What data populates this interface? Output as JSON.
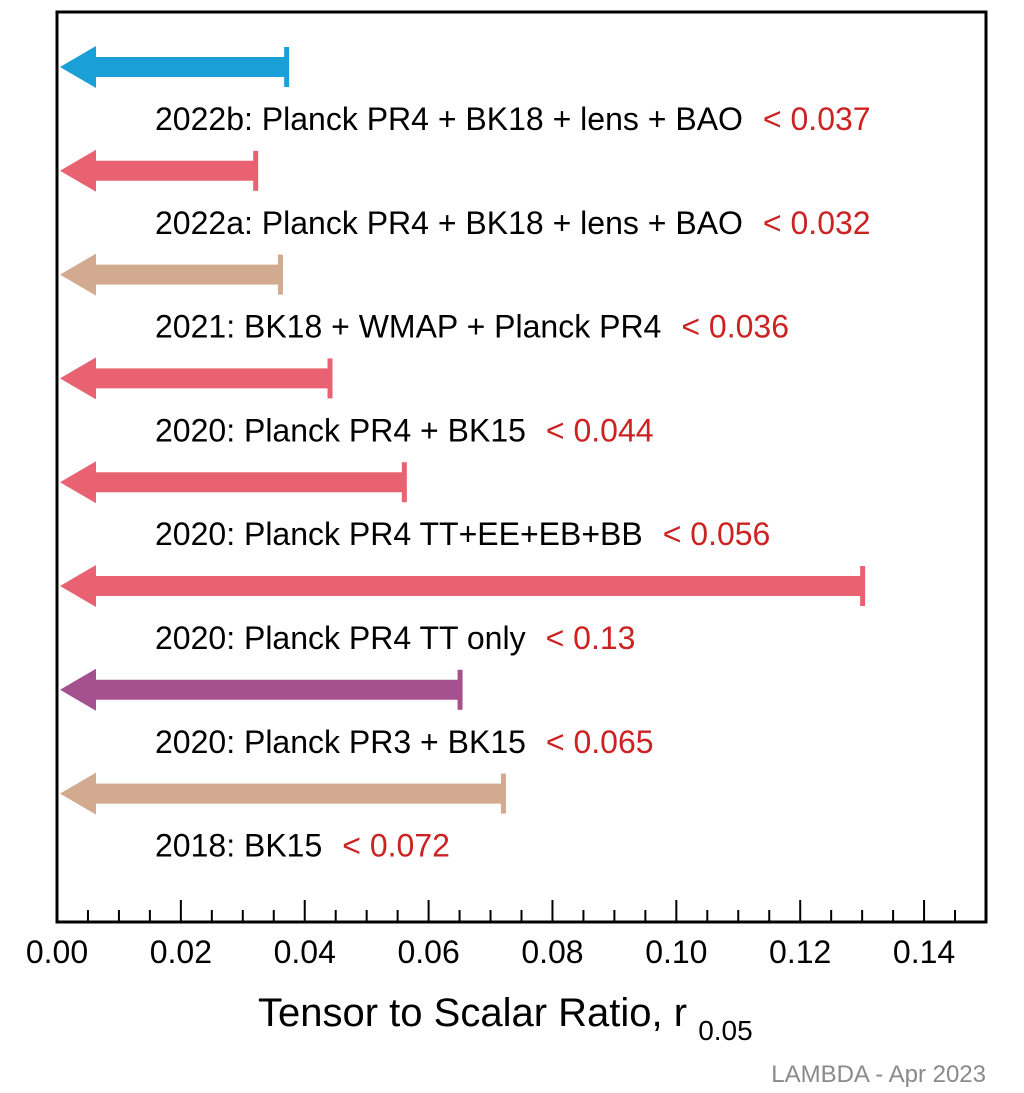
{
  "chart_data": {
    "type": "upper-limit-arrows",
    "xlim": [
      0.0,
      0.15
    ],
    "xticks": [
      "0.00",
      "0.02",
      "0.04",
      "0.06",
      "0.08",
      "0.10",
      "0.12",
      "0.14"
    ],
    "xtick_values": [
      0.0,
      0.02,
      0.04,
      0.06,
      0.08,
      0.1,
      0.12,
      0.14
    ],
    "xlabel_main": "Tensor to Scalar Ratio, r",
    "xlabel_sub": "0.05",
    "credit": "LAMBDA - Apr 2023",
    "limits": [
      {
        "label": "2022b: Planck PR4 + BK18 + lens + BAO",
        "value_text": "< 0.037",
        "value": 0.037,
        "color": "#1a9fd6"
      },
      {
        "label": "2022a: Planck PR4 + BK18 + lens + BAO",
        "value_text": "< 0.032",
        "value": 0.032,
        "color": "#e86272"
      },
      {
        "label": "2021: BK18 + WMAP + Planck PR4",
        "value_text": "< 0.036",
        "value": 0.036,
        "color": "#d2aa90"
      },
      {
        "label": "2020: Planck PR4 + BK15",
        "value_text": "< 0.044",
        "value": 0.044,
        "color": "#e86272"
      },
      {
        "label": "2020: Planck PR4 TT+EE+EB+BB",
        "value_text": "< 0.056",
        "value": 0.056,
        "color": "#e86272"
      },
      {
        "label": "2020: Planck PR4 TT only",
        "value_text": "< 0.13",
        "value": 0.13,
        "color": "#e86272"
      },
      {
        "label": "2020: Planck PR3 + BK15",
        "value_text": "< 0.065",
        "value": 0.065,
        "color": "#a5508f"
      },
      {
        "label": "2018: BK15",
        "value_text": "< 0.072",
        "value": 0.072,
        "color": "#d2aa90"
      }
    ]
  }
}
